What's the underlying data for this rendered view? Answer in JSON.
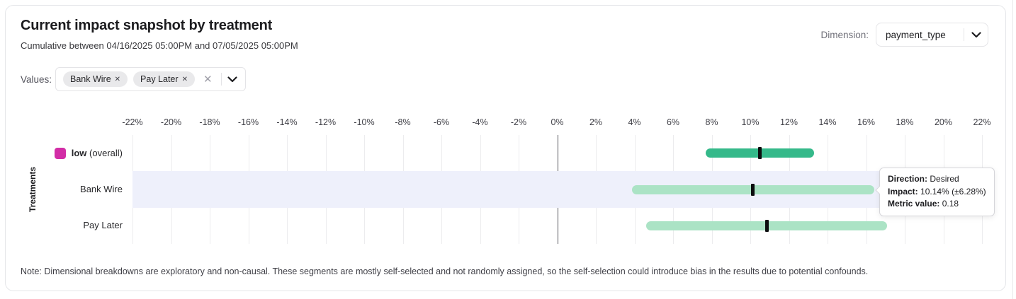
{
  "header": {
    "title": "Current impact snapshot by treatment",
    "subtitle": "Cumulative between 04/16/2025 05:00PM and 07/05/2025 05:00PM"
  },
  "dimension": {
    "label": "Dimension:",
    "selected": "payment_type"
  },
  "values_filter": {
    "label": "Values:",
    "chips": [
      {
        "label": "Bank Wire"
      },
      {
        "label": "Pay Later"
      }
    ]
  },
  "icons": {
    "remove": "✕",
    "clear": "✕"
  },
  "chart_data": {
    "type": "bar",
    "subtype": "horizontal_confidence_interval",
    "title": "Current impact snapshot by treatment",
    "ylabel": "Treatments",
    "xlim": [
      -22,
      22
    ],
    "x_ticks_percent": [
      -22,
      -20,
      -18,
      -16,
      -14,
      -12,
      -10,
      -8,
      -6,
      -4,
      -2,
      0,
      2,
      4,
      6,
      8,
      10,
      12,
      14,
      16,
      18,
      20,
      22
    ],
    "x_tick_suffix": "%",
    "grid": true,
    "zero_line": true,
    "colors": {
      "overall_bar": "#35b98a",
      "segment_bar": "#abe3c5",
      "legend_overall": "#d22da6",
      "row_highlight": "#eef0fb",
      "center_tick": "#0d0d0f"
    },
    "rows": [
      {
        "label": "low",
        "label_note": "(overall)",
        "legend_color": "#d22da6",
        "bar_color": "#35b98a",
        "impact": 10.5,
        "ci_low": 7.7,
        "ci_high": 13.3,
        "highlighted": false
      },
      {
        "label": "Bank Wire",
        "bar_color": "#abe3c5",
        "impact": 10.14,
        "ci_low": 3.86,
        "ci_high": 16.42,
        "highlighted": true
      },
      {
        "label": "Pay Later",
        "bar_color": "#abe3c5",
        "impact": 10.85,
        "ci_low": 4.6,
        "ci_high": 17.1,
        "highlighted": false
      }
    ]
  },
  "tooltip": {
    "rows": [
      {
        "label": "Direction:",
        "value": "Desired"
      },
      {
        "label": "Impact:",
        "value": "10.14% (±6.28%)"
      },
      {
        "label": "Metric value:",
        "value": "0.18"
      }
    ]
  },
  "note": "Note: Dimensional breakdowns are exploratory and non-causal. These segments are mostly self-selected and not randomly assigned, so the self-selection could introduce bias in the results due to potential confounds."
}
